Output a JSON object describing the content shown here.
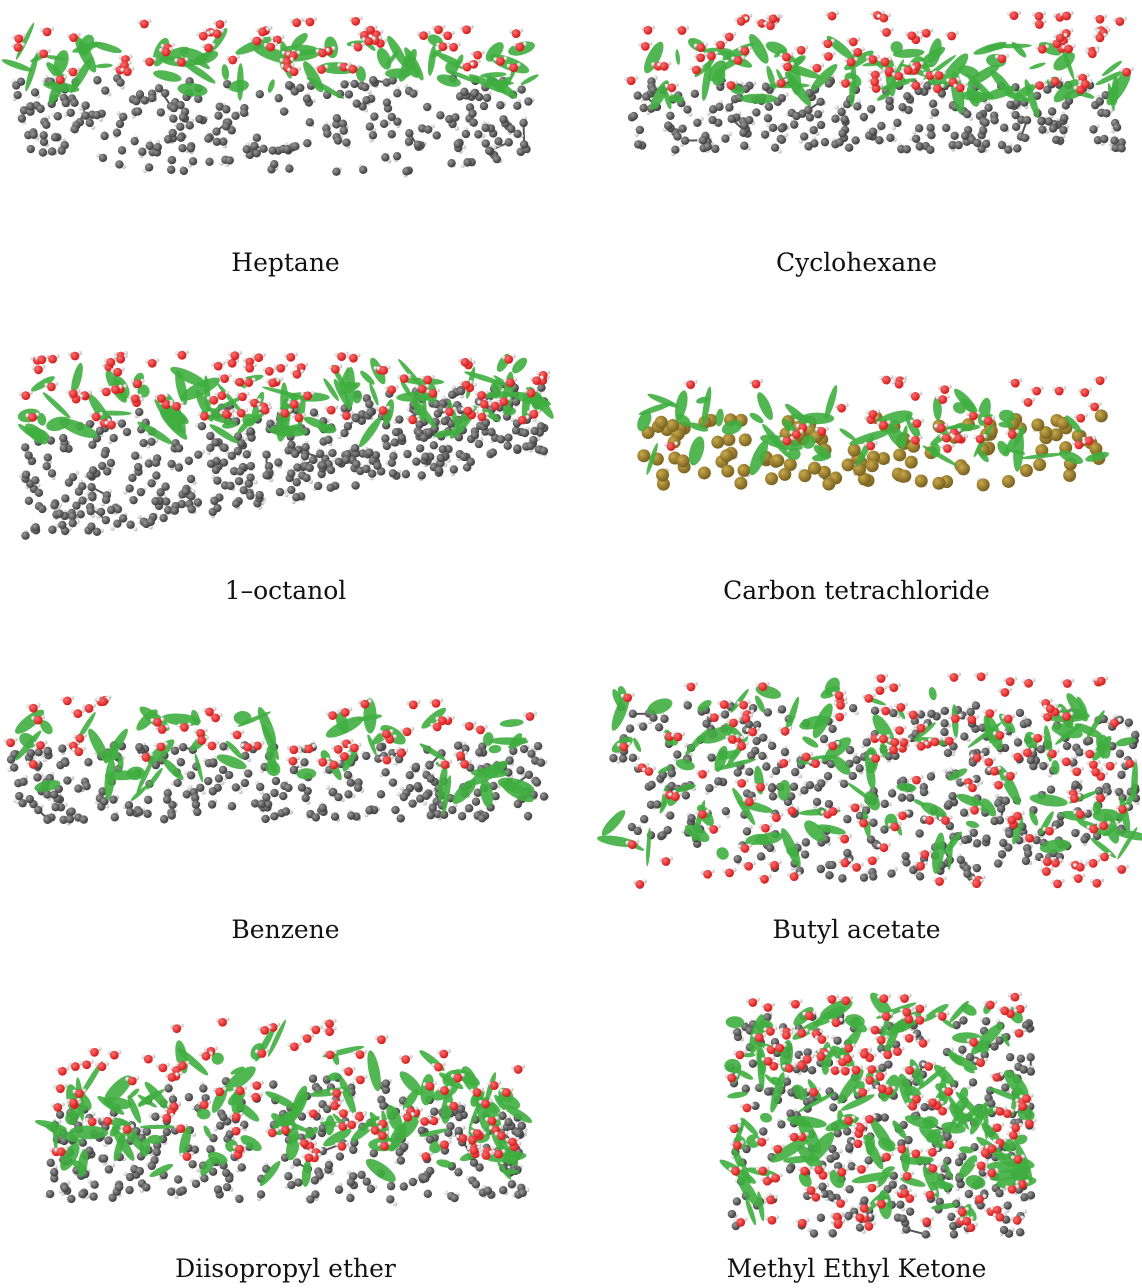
{
  "panels": [
    {
      "id": "heptane",
      "caption": "Heptane"
    },
    {
      "id": "cyclohexane",
      "caption": "Cyclohexane"
    },
    {
      "id": "octanol",
      "caption": "1–octanol"
    },
    {
      "id": "ccl4",
      "caption": "Carbon tetrachloride"
    },
    {
      "id": "benzene",
      "caption": "Benzene"
    },
    {
      "id": "butyl-acetate",
      "caption": "Butyl acetate"
    },
    {
      "id": "diisopropyl-ether",
      "caption": "Diisopropyl ether"
    },
    {
      "id": "mek",
      "caption": "Methyl Ethyl Ketone"
    }
  ],
  "colors": {
    "carbon": "#3d3d3d",
    "hydrogen": "#e6e6e6",
    "oxygen": "#d41a1a",
    "chlorine": "#7a6220",
    "surface": "#3fae3f"
  }
}
